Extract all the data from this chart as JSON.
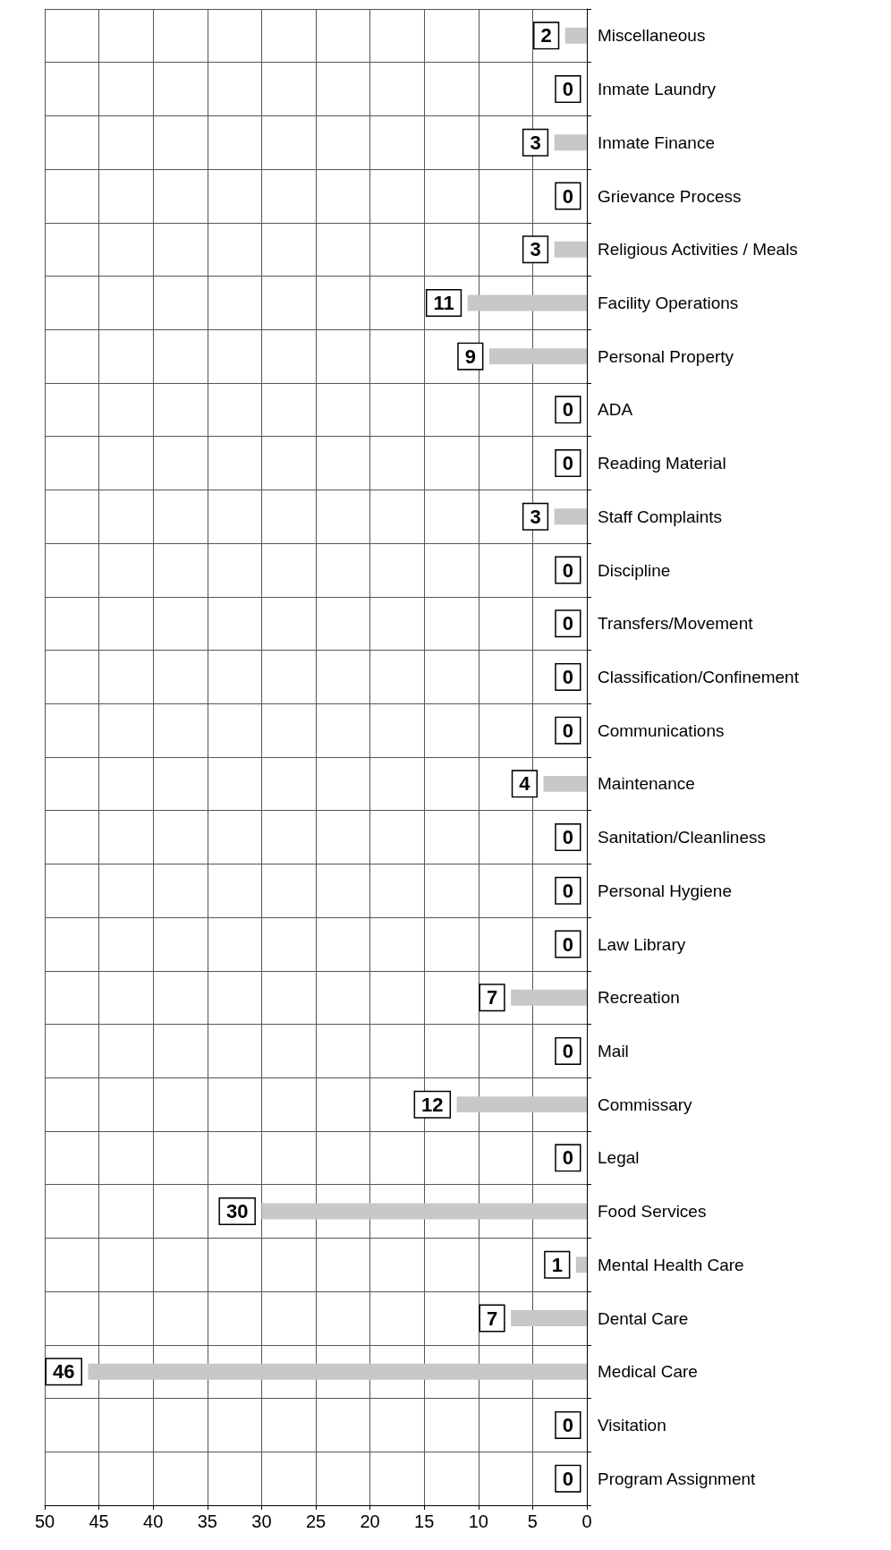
{
  "chart_data": {
    "type": "bar",
    "orientation": "horizontal",
    "categories": [
      "Miscellaneous",
      "Inmate Laundry",
      "Inmate Finance",
      "Grievance Process",
      "Religious Activities / Meals",
      "Facility Operations",
      "Personal Property",
      "ADA",
      "Reading Material",
      "Staff Complaints",
      "Discipline",
      "Transfers/Movement",
      "Classification/Confinement",
      "Communications",
      "Maintenance",
      "Sanitation/Cleanliness",
      "Personal Hygiene",
      "Law Library",
      "Recreation",
      "Mail",
      "Commissary",
      "Legal",
      "Food Services",
      "Mental Health Care",
      "Dental Care",
      "Medical Care",
      "Visitation",
      "Program Assignment"
    ],
    "values": [
      2,
      0,
      3,
      0,
      3,
      11,
      9,
      0,
      0,
      3,
      0,
      0,
      0,
      0,
      4,
      0,
      0,
      0,
      7,
      0,
      12,
      0,
      30,
      1,
      7,
      46,
      0,
      0
    ],
    "color": "#c8c8c8",
    "xlim": [
      50,
      0
    ],
    "xticks": [
      0,
      5,
      10,
      15,
      20,
      25,
      30,
      35,
      40,
      45,
      50
    ],
    "grid": true,
    "data_labels": true
  }
}
